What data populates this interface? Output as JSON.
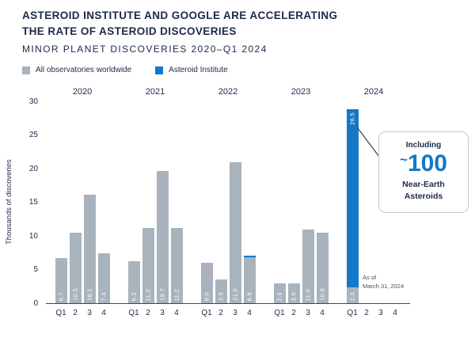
{
  "header": {
    "title_line1": "ASTEROID INSTITUTE AND GOOGLE ARE ACCELERATING",
    "title_line2": "THE RATE OF ASTEROID DISCOVERIES",
    "subtitle": "MINOR PLANET DISCOVERIES 2020–Q1 2024"
  },
  "legend": {
    "items": [
      {
        "label": "All observatories worldwide",
        "color": "#a9b3bd"
      },
      {
        "label": "Asteroid Institute",
        "color": "#1278c7"
      }
    ]
  },
  "chart_data": {
    "type": "bar",
    "stacked": true,
    "title": "MINOR PLANET DISCOVERIES 2020–Q1 2024",
    "ylabel": "Thousands of discoveries",
    "ylim": [
      0,
      30
    ],
    "yticks": [
      0,
      5,
      10,
      15,
      20,
      25,
      30
    ],
    "grid": false,
    "legend_position": "top-left",
    "series_colors": {
      "gray": "#a9b3bd",
      "blue": "#1278c7"
    },
    "series_names": {
      "gray": "All observatories worldwide",
      "blue": "Asteroid Institute"
    },
    "groups": [
      {
        "year": "2020",
        "bars": [
          {
            "q": "Q1",
            "gray": 6.7,
            "label": "6.7"
          },
          {
            "q": "2",
            "gray": 10.5,
            "label": "10.5"
          },
          {
            "q": "3",
            "gray": 16.1,
            "label": "16.1"
          },
          {
            "q": "4",
            "gray": 7.4,
            "label": "7.4"
          }
        ]
      },
      {
        "year": "2021",
        "bars": [
          {
            "q": "Q1",
            "gray": 6.2,
            "label": "6.2"
          },
          {
            "q": "2",
            "gray": 11.2,
            "label": "11.2"
          },
          {
            "q": "3",
            "gray": 19.7,
            "label": "19.7"
          },
          {
            "q": "4",
            "gray": 11.2,
            "label": "11.2"
          }
        ]
      },
      {
        "year": "2022",
        "bars": [
          {
            "q": "Q1",
            "gray": 6.0,
            "label": "6.0"
          },
          {
            "q": "2",
            "gray": 3.5,
            "label": "3.5"
          },
          {
            "q": "3",
            "gray": 21.0,
            "label": "21.0"
          },
          {
            "q": "4",
            "gray": 6.8,
            "label": "6.8",
            "blue": 0.3
          }
        ]
      },
      {
        "year": "2023",
        "bars": [
          {
            "q": "Q1",
            "gray": 2.9,
            "label": "2.9"
          },
          {
            "q": "2",
            "gray": 3.0,
            "label": "3.0"
          },
          {
            "q": "3",
            "gray": 11.0,
            "label": "11.0"
          },
          {
            "q": "4",
            "gray": 10.5,
            "label": "10.5"
          }
        ]
      },
      {
        "year": "2024",
        "bars": [
          {
            "q": "Q1",
            "gray": 2.3,
            "label": "2.3",
            "blue": 26.5,
            "blue_label": "26.5"
          },
          {
            "q": "2"
          },
          {
            "q": "3"
          },
          {
            "q": "4"
          }
        ]
      }
    ]
  },
  "callout": {
    "intro": "Including",
    "approx": "~",
    "value": "100",
    "line2": "Near-Earth",
    "line3": "Asteroids"
  },
  "footnote": {
    "line1": "As of",
    "line2": "March 31, 2024"
  }
}
